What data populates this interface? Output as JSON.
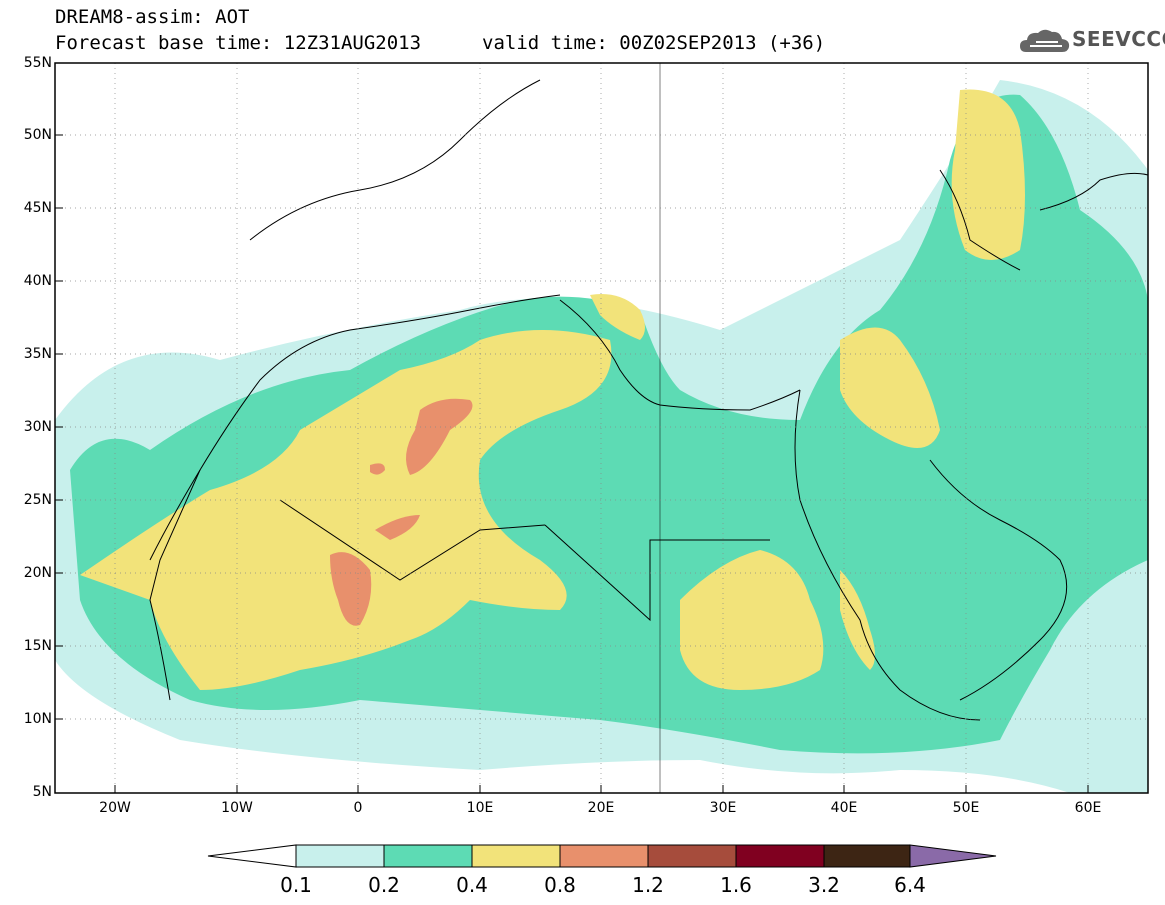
{
  "header": {
    "title": "DREAM8-assim: AOT",
    "base_time": "Forecast base time: 12Z31AUG2013",
    "valid_time": "valid time: 00Z02SEP2013 (+36)"
  },
  "logo": {
    "text": "SEEVCCC",
    "icon": "cloud-icon"
  },
  "map": {
    "lat_labels": [
      "55N",
      "50N",
      "45N",
      "40N",
      "35N",
      "30N",
      "25N",
      "20N",
      "15N",
      "10N",
      "5N"
    ],
    "lon_labels": [
      "20W",
      "10W",
      "0",
      "10E",
      "20E",
      "30E",
      "40E",
      "50E",
      "60E"
    ]
  },
  "colorbar": {
    "labels": [
      "0.1",
      "0.2",
      "0.4",
      "0.8",
      "1.2",
      "1.6",
      "3.2",
      "6.4"
    ],
    "colors": [
      "#c8f0ec",
      "#5ddbb4",
      "#f2e37a",
      "#e8906c",
      "#a64c3c",
      "#800020",
      "#3d2514",
      "#8a6aa8"
    ]
  }
}
